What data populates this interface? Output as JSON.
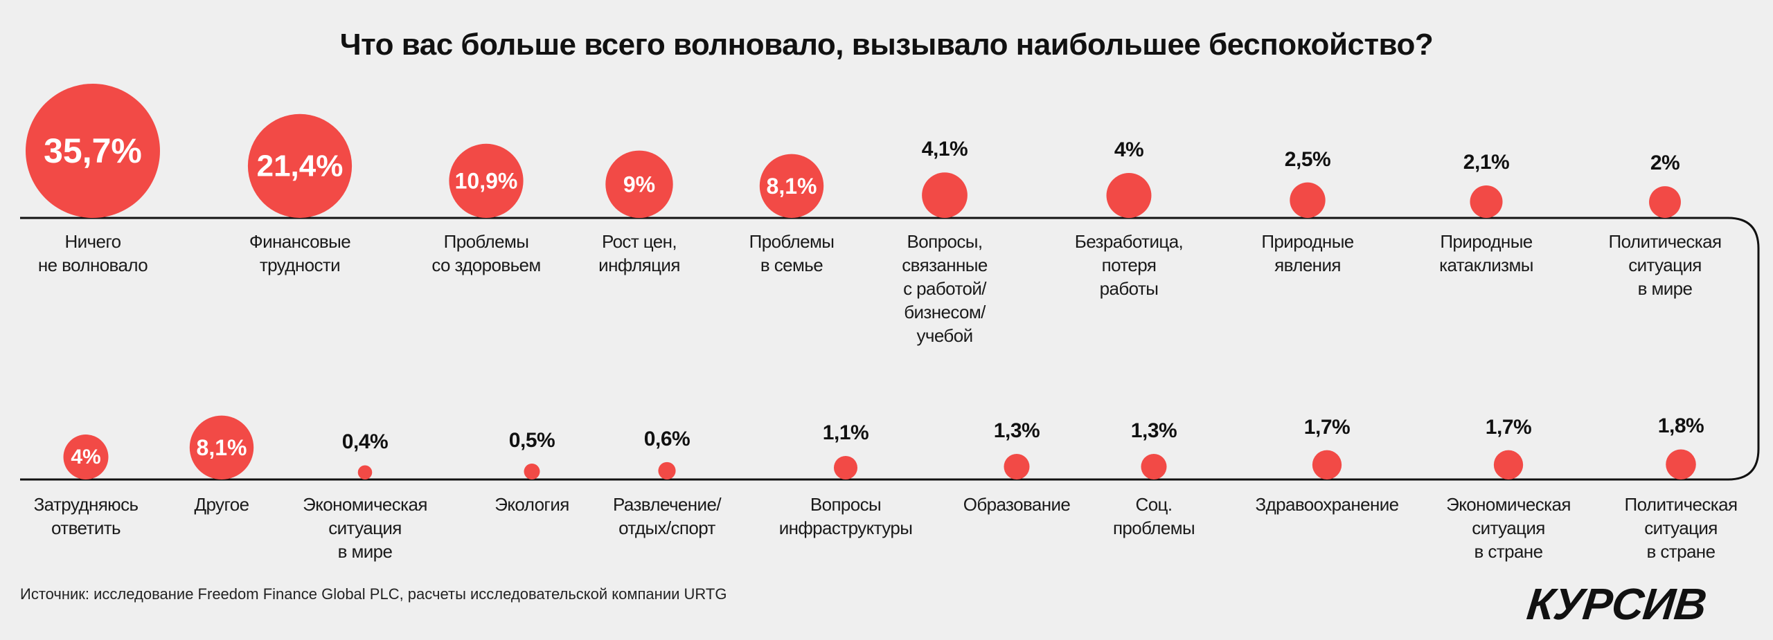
{
  "chart_data": {
    "type": "bubble",
    "title": "Что вас больше всего волновало, вызывало наибольшее беспокойство?",
    "unit": "%",
    "colors": {
      "bubble": "#f24a46",
      "line": "#111111"
    },
    "rows": [
      [
        {
          "label": "Ничего\nне волновало",
          "value": 35.7,
          "value_label": "35,7%"
        },
        {
          "label": "Финансовые\nтрудности",
          "value": 21.4,
          "value_label": "21,4%"
        },
        {
          "label": "Проблемы\nсо здоровьем",
          "value": 10.9,
          "value_label": "10,9%"
        },
        {
          "label": "Рост цен,\nинфляция",
          "value": 9,
          "value_label": "9%"
        },
        {
          "label": "Проблемы\nв семье",
          "value": 8.1,
          "value_label": "8,1%"
        },
        {
          "label": "Вопросы,\nсвязанные\nс работой/\nбизнесом/\nучебой",
          "value": 4.1,
          "value_label": "4,1%"
        },
        {
          "label": "Безработица,\nпотеря\nработы",
          "value": 4,
          "value_label": "4%"
        },
        {
          "label": "Природные\nявления",
          "value": 2.5,
          "value_label": "2,5%"
        },
        {
          "label": "Природные\nкатаклизмы",
          "value": 2.1,
          "value_label": "2,1%"
        },
        {
          "label": "Политическая\nситуация\nв мире",
          "value": 2,
          "value_label": "2%"
        }
      ],
      [
        {
          "label": "Затрудняюсь\nответить",
          "value": 4,
          "value_label": "4%"
        },
        {
          "label": "Другое",
          "value": 8.1,
          "value_label": "8,1%"
        },
        {
          "label": "Экономическая\nситуация\nв мире",
          "value": 0.4,
          "value_label": "0,4%"
        },
        {
          "label": "Экология",
          "value": 0.5,
          "value_label": "0,5%"
        },
        {
          "label": "Развлечение/\nотдых/спорт",
          "value": 0.6,
          "value_label": "0,6%"
        },
        {
          "label": "Вопросы\nинфраструктуры",
          "value": 1.1,
          "value_label": "1,1%"
        },
        {
          "label": "Образование",
          "value": 1.3,
          "value_label": "1,3%"
        },
        {
          "label": "Соц.\nпроблемы",
          "value": 1.3,
          "value_label": "1,3%"
        },
        {
          "label": "Здравоохранение",
          "value": 1.7,
          "value_label": "1,7%"
        },
        {
          "label": "Экономическая\nситуация\nв стране",
          "value": 1.7,
          "value_label": "1,7%"
        },
        {
          "label": "Политическая\nситуация\nв стране",
          "value": 1.8,
          "value_label": "1,8%"
        }
      ]
    ]
  },
  "source": "Источник: исследование Freedom Finance Global PLC, расчеты исследовательской компании URTG",
  "logo": "КУРСИВ"
}
